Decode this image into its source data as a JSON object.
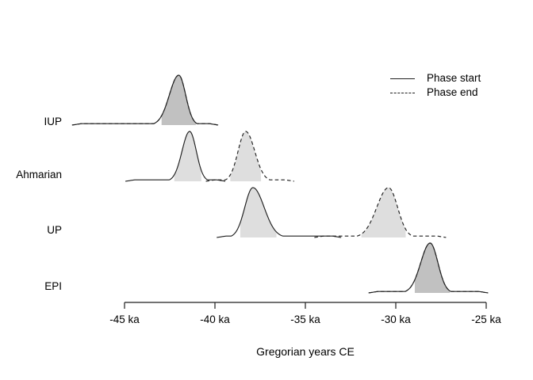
{
  "figure": {
    "background": "#ffffff",
    "line_color": "#1f1f1f",
    "fill_color": "rgba(0,0,0,0.13)",
    "text_color": "#000000"
  },
  "legend": {
    "items": [
      {
        "label": "Phase start",
        "style": "solid"
      },
      {
        "label": "Phase end",
        "style": "dashed"
      }
    ]
  },
  "chart_data": {
    "type": "area",
    "subtype": "ridgeline-density",
    "title": "",
    "xlabel": "Gregorian years CE",
    "ylabel": "",
    "x_unit": "ka",
    "xlim": [
      -45,
      -25
    ],
    "grid": false,
    "legend_position": "top-right",
    "x_ticks": [
      {
        "value": -45,
        "label": "-45 ka"
      },
      {
        "value": -40,
        "label": "-40 ka"
      },
      {
        "value": -35,
        "label": "-35 ka"
      },
      {
        "value": -30,
        "label": "-30 ka"
      },
      {
        "value": -25,
        "label": "-25 ka"
      }
    ],
    "phases": [
      {
        "name": "IUP",
        "curves": [
          {
            "role": "start",
            "line": "solid",
            "center_ka": -42.0,
            "sigma_left_ka": 0.52,
            "sigma_right_ka": 0.38,
            "curve_from_ka": -47.9,
            "curve_to_ka": -39.8,
            "shaded_from_ka": -42.95,
            "shaded_to_ka": -41.05
          },
          {
            "role": "end",
            "line": "dashed",
            "center_ka": -42.0,
            "sigma_left_ka": 0.52,
            "sigma_right_ka": 0.38,
            "curve_from_ka": -47.9,
            "curve_to_ka": -39.8,
            "shaded_from_ka": -42.95,
            "shaded_to_ka": -41.05
          }
        ]
      },
      {
        "name": "Ahmarian",
        "curves": [
          {
            "role": "start",
            "line": "solid",
            "center_ka": -41.4,
            "sigma_left_ka": 0.42,
            "sigma_right_ka": 0.37,
            "curve_from_ka": -44.95,
            "curve_to_ka": -39.4,
            "shaded_from_ka": -42.25,
            "shaded_to_ka": -40.75
          },
          {
            "role": "end",
            "line": "dashed",
            "center_ka": -38.3,
            "sigma_left_ka": 0.42,
            "sigma_right_ka": 0.5,
            "curve_from_ka": -40.5,
            "curve_to_ka": -35.6,
            "shaded_from_ka": -39.15,
            "shaded_to_ka": -37.45
          }
        ]
      },
      {
        "name": "UP",
        "curves": [
          {
            "role": "start",
            "line": "solid",
            "center_ka": -37.9,
            "sigma_left_ka": 0.45,
            "sigma_right_ka": 0.62,
            "curve_from_ka": -39.9,
            "curve_to_ka": -33.0,
            "shaded_from_ka": -38.6,
            "shaded_to_ka": -36.6
          },
          {
            "role": "end",
            "line": "dashed",
            "center_ka": -30.4,
            "sigma_left_ka": 0.65,
            "sigma_right_ka": 0.5,
            "curve_from_ka": -34.5,
            "curve_to_ka": -27.2,
            "shaded_from_ka": -31.9,
            "shaded_to_ka": -29.45
          }
        ]
      },
      {
        "name": "EPI",
        "curves": [
          {
            "role": "start",
            "line": "solid",
            "center_ka": -28.1,
            "sigma_left_ka": 0.52,
            "sigma_right_ka": 0.43,
            "curve_from_ka": -31.5,
            "curve_to_ka": -24.9,
            "shaded_from_ka": -28.95,
            "shaded_to_ka": -27.0
          },
          {
            "role": "end",
            "line": "dashed",
            "center_ka": -28.1,
            "sigma_left_ka": 0.52,
            "sigma_right_ka": 0.43,
            "curve_from_ka": -31.5,
            "curve_to_ka": -24.9,
            "shaded_from_ka": -28.95,
            "shaded_to_ka": -27.0
          }
        ]
      }
    ]
  }
}
